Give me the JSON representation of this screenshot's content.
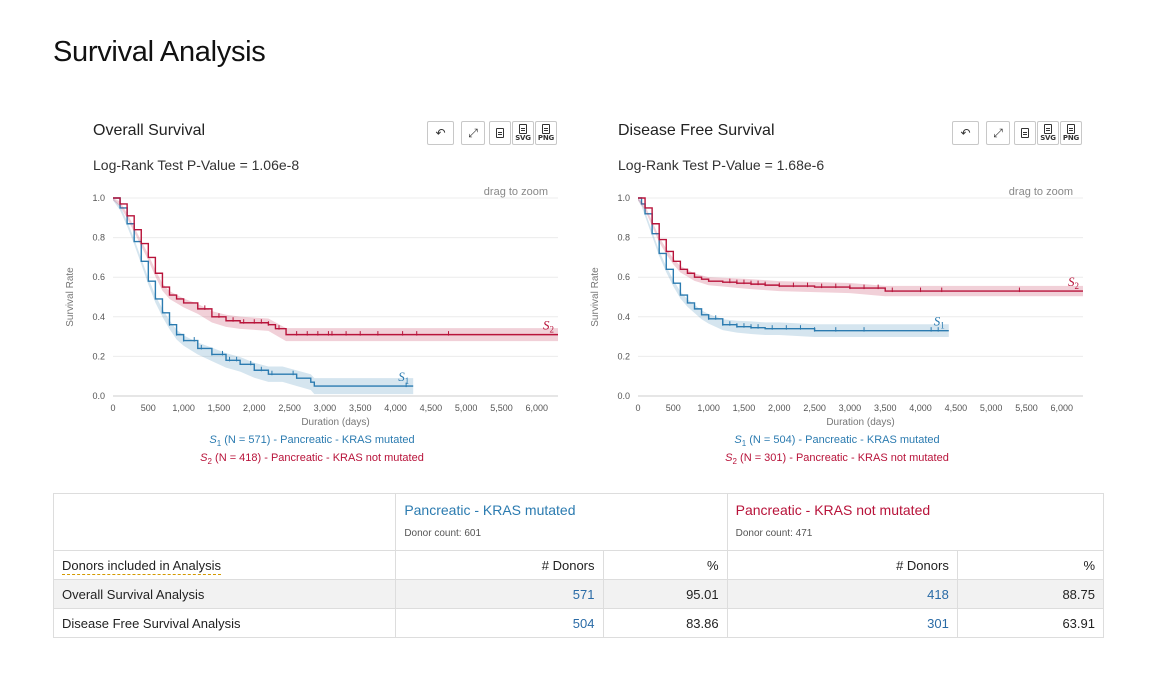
{
  "page": {
    "title": "Survival Analysis"
  },
  "toolbar": {
    "reset_icon": "undo-icon",
    "expand_icon": "expand-icon",
    "tsv_icon": "document-icon",
    "svg_label": "SVG",
    "png_label": "PNG"
  },
  "charts": {
    "os": {
      "title": "Overall Survival",
      "pvalue": "Log-Rank Test P-Value = 1.06e-8",
      "drag_hint": "drag to zoom",
      "legend": [
        {
          "prefix": "S",
          "sub": "1",
          "text": " (N = 571) - Pancreatic - KRAS mutated"
        },
        {
          "prefix": "S",
          "sub": "2",
          "text": " (N = 418) - Pancreatic - KRAS not mutated"
        }
      ]
    },
    "dfs": {
      "title": "Disease Free Survival",
      "pvalue": "Log-Rank Test P-Value = 1.68e-6",
      "drag_hint": "drag to zoom",
      "legend": [
        {
          "prefix": "S",
          "sub": "1",
          "text": " (N = 504) - Pancreatic - KRAS mutated"
        },
        {
          "prefix": "S",
          "sub": "2",
          "text": " (N = 301) - Pancreatic - KRAS not mutated"
        }
      ]
    }
  },
  "chart_data": [
    {
      "type": "line",
      "title": "Overall Survival",
      "xlabel": "Duration (days)",
      "ylabel": "Survival Rate",
      "xlim": [
        0,
        6300
      ],
      "ylim": [
        0,
        1
      ],
      "x_ticks": [
        "0",
        "500",
        "1,000",
        "1,500",
        "2,000",
        "2,500",
        "3,000",
        "3,500",
        "4,000",
        "4,500",
        "5,000",
        "5,500",
        "6,000"
      ],
      "y_ticks": [
        "0.0",
        "0.2",
        "0.4",
        "0.6",
        "0.8",
        "1.0"
      ],
      "series": [
        {
          "name": "S1",
          "label_prefix": "S",
          "label_sub": "1",
          "color": "#2b7bb0",
          "x": [
            0,
            100,
            200,
            300,
            400,
            500,
            600,
            700,
            800,
            900,
            1000,
            1200,
            1400,
            1600,
            1800,
            2000,
            2200,
            2400,
            2600,
            2800,
            2850,
            3500,
            4200,
            4250
          ],
          "y": [
            1.0,
            0.95,
            0.87,
            0.78,
            0.68,
            0.58,
            0.49,
            0.42,
            0.36,
            0.31,
            0.28,
            0.24,
            0.21,
            0.18,
            0.16,
            0.13,
            0.11,
            0.11,
            0.09,
            0.07,
            0.05,
            0.05,
            0.05,
            0.05
          ],
          "censor_x": [
            800,
            900,
            1000,
            1150,
            1250,
            1400,
            1550,
            1650,
            1750,
            1950,
            2100,
            2250,
            2550,
            4150
          ]
        },
        {
          "name": "S2",
          "label_prefix": "S",
          "label_sub": "2",
          "color": "#b8133a",
          "x": [
            0,
            100,
            200,
            300,
            400,
            500,
            600,
            700,
            800,
            900,
            1000,
            1200,
            1400,
            1600,
            1800,
            2200,
            2300,
            2450,
            2700,
            3000,
            4000,
            5000,
            6300
          ],
          "y": [
            1.0,
            0.97,
            0.91,
            0.84,
            0.77,
            0.7,
            0.62,
            0.55,
            0.51,
            0.49,
            0.47,
            0.44,
            0.4,
            0.38,
            0.37,
            0.36,
            0.34,
            0.31,
            0.31,
            0.31,
            0.31,
            0.31,
            0.31
          ],
          "censor_x": [
            1300,
            1500,
            1700,
            1850,
            2000,
            2100,
            2200,
            2350,
            2600,
            2750,
            2900,
            3050,
            3100,
            3300,
            3500,
            3750,
            4100,
            4300,
            4750
          ]
        }
      ]
    },
    {
      "type": "line",
      "title": "Disease Free Survival",
      "xlabel": "Duration (days)",
      "ylabel": "Survival Rate",
      "xlim": [
        0,
        6300
      ],
      "ylim": [
        0,
        1
      ],
      "x_ticks": [
        "0",
        "500",
        "1,000",
        "1,500",
        "2,000",
        "2,500",
        "3,000",
        "3,500",
        "4,000",
        "4,500",
        "5,000",
        "5,500",
        "6,000"
      ],
      "y_ticks": [
        "0.0",
        "0.2",
        "0.4",
        "0.6",
        "0.8",
        "1.0"
      ],
      "series": [
        {
          "name": "S1",
          "label_prefix": "S",
          "label_sub": "1",
          "color": "#2b7bb0",
          "x": [
            0,
            50,
            100,
            200,
            300,
            400,
            500,
            600,
            700,
            800,
            900,
            1000,
            1200,
            1400,
            1600,
            1800,
            2000,
            2500,
            3000,
            3500,
            4000,
            4400
          ],
          "y": [
            1.0,
            0.97,
            0.92,
            0.82,
            0.72,
            0.64,
            0.57,
            0.51,
            0.47,
            0.44,
            0.41,
            0.39,
            0.36,
            0.35,
            0.345,
            0.34,
            0.34,
            0.33,
            0.33,
            0.33,
            0.33,
            0.33
          ],
          "censor_x": [
            1000,
            1100,
            1200,
            1300,
            1400,
            1500,
            1600,
            1700,
            1900,
            2100,
            2300,
            2500,
            2800,
            3200,
            4150,
            4250
          ]
        },
        {
          "name": "S2",
          "label_prefix": "S",
          "label_sub": "2",
          "color": "#b8133a",
          "x": [
            0,
            100,
            200,
            300,
            400,
            500,
            600,
            700,
            800,
            900,
            1000,
            1200,
            1400,
            1600,
            1800,
            2000,
            2500,
            3000,
            3500,
            4000,
            5000,
            6300
          ],
          "y": [
            1.0,
            0.95,
            0.87,
            0.79,
            0.73,
            0.68,
            0.64,
            0.62,
            0.6,
            0.59,
            0.58,
            0.575,
            0.57,
            0.565,
            0.56,
            0.555,
            0.55,
            0.545,
            0.53,
            0.53,
            0.53,
            0.53
          ],
          "censor_x": [
            1300,
            1400,
            1500,
            1600,
            1700,
            1800,
            2000,
            2200,
            2400,
            2600,
            2800,
            3000,
            3200,
            3400,
            3600,
            4000,
            4300,
            5400
          ]
        }
      ]
    }
  ],
  "table": {
    "cohorts": [
      {
        "name": "Pancreatic - KRAS mutated",
        "donor_count": "Donor count: 601",
        "color": "#2b7bb0"
      },
      {
        "name": "Pancreatic - KRAS not mutated",
        "donor_count": "Donor count: 471",
        "color": "#b8133a"
      }
    ],
    "header_label": "Donors included in Analysis",
    "col_donors": "# Donors",
    "col_percent": "%",
    "rows": [
      {
        "label": "Overall Survival Analysis",
        "c1_donors": "571",
        "c1_pct": "95.01",
        "c2_donors": "418",
        "c2_pct": "88.75"
      },
      {
        "label": "Disease Free Survival Analysis",
        "c1_donors": "504",
        "c1_pct": "83.86",
        "c2_donors": "301",
        "c2_pct": "63.91"
      }
    ]
  }
}
